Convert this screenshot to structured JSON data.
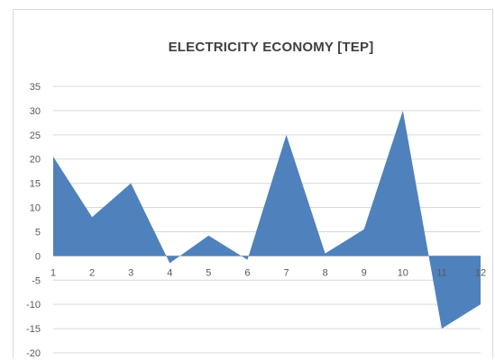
{
  "chart_data": {
    "type": "area",
    "title": "ELECTRICITY ECONOMY [TEP]",
    "x": [
      1,
      2,
      3,
      4,
      5,
      6,
      7,
      8,
      9,
      10,
      11,
      12
    ],
    "series": [
      {
        "values": [
          20.5,
          8,
          15,
          -1.5,
          4.2,
          -0.8,
          25,
          0.5,
          5.5,
          30,
          -15,
          -10
        ]
      }
    ],
    "ylim": [
      -20,
      35
    ],
    "yticks": [
      35,
      30,
      25,
      20,
      15,
      10,
      5,
      0,
      -5,
      -10,
      -15,
      -20
    ],
    "xticks": [
      "1",
      "2",
      "3",
      "4",
      "5",
      "6",
      "7",
      "8",
      "9",
      "10",
      "11",
      "12"
    ],
    "grid": true,
    "colors": {
      "fill": "#4f81bd",
      "grid": "#d9d9d9",
      "axis": "#bfbfbf"
    }
  }
}
